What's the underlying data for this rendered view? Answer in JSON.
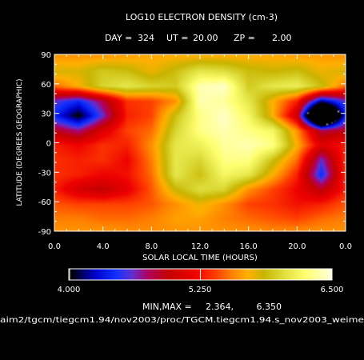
{
  "chart_data": {
    "type": "heatmap",
    "title": "LOG10 ELECTRON DENSITY (cm-3)",
    "subtitle": {
      "day_label": "DAY =",
      "day": "324",
      "ut_label": "UT =",
      "ut": "20.00",
      "zp_label": "ZP =",
      "zp": "2.00"
    },
    "xlabel": "SOLAR LOCAL TIME (HOURS)",
    "ylabel": "LATITUDE (DEGREES GEOGRAPHIC)",
    "x_ticks": [
      "0.0",
      "4.0",
      "8.0",
      "12.0",
      "16.0",
      "20.0",
      "0.0"
    ],
    "y_ticks": [
      "90",
      "60",
      "30",
      "0",
      "-30",
      "-60",
      "-90"
    ],
    "xlim": [
      0,
      24
    ],
    "ylim": [
      -90,
      90
    ],
    "local_time": [
      0,
      2,
      4,
      6,
      8,
      10,
      12,
      14,
      16,
      18,
      20,
      22,
      24
    ],
    "latitude": [
      87.5,
      72.5,
      57.5,
      42.5,
      27.5,
      12.5,
      -2.5,
      -17.5,
      -32.5,
      -47.5,
      -62.5,
      -77.5,
      -87.5
    ],
    "values": [
      [
        5.62,
        5.62,
        5.64,
        5.66,
        5.68,
        5.7,
        5.72,
        5.72,
        5.7,
        5.68,
        5.66,
        5.64,
        5.62
      ],
      [
        5.8,
        5.8,
        5.95,
        5.9,
        5.75,
        5.9,
        6.1,
        6.05,
        5.9,
        5.85,
        5.9,
        5.75,
        5.8
      ],
      [
        5.5,
        5.7,
        6.0,
        6.1,
        6.0,
        5.95,
        6.4,
        6.45,
        5.95,
        6.1,
        6.15,
        5.9,
        5.5
      ],
      [
        4.6,
        4.4,
        4.8,
        5.35,
        5.4,
        5.6,
        6.4,
        6.35,
        6.1,
        5.7,
        5.3,
        4.2,
        4.6
      ],
      [
        4.4,
        4.0,
        4.6,
        5.3,
        5.4,
        5.9,
        6.3,
        6.45,
        6.2,
        5.7,
        5.0,
        2.4,
        4.4
      ],
      [
        4.9,
        4.7,
        5.1,
        5.4,
        5.5,
        6.0,
        6.3,
        6.4,
        6.3,
        6.2,
        5.6,
        4.8,
        4.9
      ],
      [
        5.3,
        5.2,
        5.35,
        5.3,
        5.6,
        6.1,
        6.15,
        6.35,
        6.4,
        6.3,
        5.7,
        5.1,
        5.3
      ],
      [
        5.35,
        5.3,
        5.35,
        5.2,
        5.55,
        6.1,
        6.0,
        6.3,
        6.3,
        5.9,
        5.5,
        4.6,
        5.35
      ],
      [
        5.35,
        5.3,
        5.2,
        5.25,
        5.5,
        6.1,
        5.9,
        6.2,
        6.1,
        5.7,
        5.3,
        4.4,
        5.35
      ],
      [
        5.3,
        5.05,
        4.95,
        5.15,
        5.45,
        5.85,
        6.05,
        6.0,
        5.6,
        5.4,
        5.2,
        4.9,
        5.3
      ],
      [
        5.45,
        5.4,
        5.4,
        5.4,
        5.45,
        5.6,
        5.75,
        5.6,
        5.4,
        5.35,
        5.25,
        5.3,
        5.45
      ],
      [
        5.55,
        5.55,
        5.5,
        5.5,
        5.55,
        5.65,
        5.65,
        5.55,
        5.5,
        5.45,
        5.4,
        5.5,
        5.55
      ],
      [
        5.6,
        5.6,
        5.6,
        5.58,
        5.58,
        5.62,
        5.62,
        5.6,
        5.58,
        5.55,
        5.55,
        5.58,
        5.6
      ]
    ],
    "colorbar": {
      "min": 4.0,
      "mid": 5.25,
      "max": 6.5,
      "labels": [
        "4.000",
        "5.250",
        "6.500"
      ],
      "stops": [
        {
          "v": 4.0,
          "c": "#ffffff"
        },
        {
          "v": 4.02,
          "c": "#000000"
        },
        {
          "v": 4.25,
          "c": "#0000cc"
        },
        {
          "v": 4.45,
          "c": "#1030ff"
        },
        {
          "v": 4.6,
          "c": "#6030d0"
        },
        {
          "v": 4.75,
          "c": "#b00060"
        },
        {
          "v": 4.95,
          "c": "#c40000"
        },
        {
          "v": 5.2,
          "c": "#ee0000"
        },
        {
          "v": 5.4,
          "c": "#ff4000"
        },
        {
          "v": 5.55,
          "c": "#ff8000"
        },
        {
          "v": 5.7,
          "c": "#ffb000"
        },
        {
          "v": 5.85,
          "c": "#c8b400"
        },
        {
          "v": 6.05,
          "c": "#e0e040"
        },
        {
          "v": 6.25,
          "c": "#ffff70"
        },
        {
          "v": 6.5,
          "c": "#ffffe0"
        }
      ]
    },
    "minmax_label": "MIN,MAX =",
    "min_value": "2.364,",
    "max_value": "6.350",
    "source_path": "aim2/tgcm/tiegcm1.94/nov2003/proc/TGCM.tiegcm1.94.s_nov2003_weime"
  }
}
